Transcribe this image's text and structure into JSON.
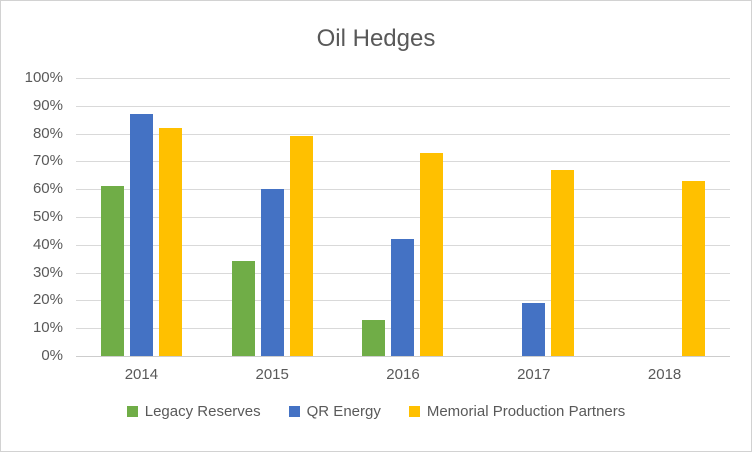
{
  "title": "Oil Hedges",
  "chart_data": {
    "type": "bar",
    "title": "Oil Hedges",
    "categories": [
      "2014",
      "2015",
      "2016",
      "2017",
      "2018"
    ],
    "series": [
      {
        "name": "Legacy Reserves",
        "color": "#70AD47",
        "values": [
          61,
          34,
          13,
          0,
          0
        ]
      },
      {
        "name": "QR Energy",
        "color": "#4472C4",
        "values": [
          87,
          60,
          42,
          19,
          0
        ]
      },
      {
        "name": "Memorial Production Partners",
        "color": "#FFC000",
        "values": [
          82,
          79,
          73,
          67,
          63
        ]
      }
    ],
    "y_ticks": [
      "100%",
      "90%",
      "80%",
      "70%",
      "60%",
      "50%",
      "40%",
      "30%",
      "20%",
      "10%",
      "0%"
    ],
    "ylim": [
      0,
      100
    ],
    "xlabel": "",
    "ylabel": "",
    "grid": true,
    "legend_position": "bottom",
    "text_color": "#595959",
    "grid_color": "#D9D9D9"
  }
}
